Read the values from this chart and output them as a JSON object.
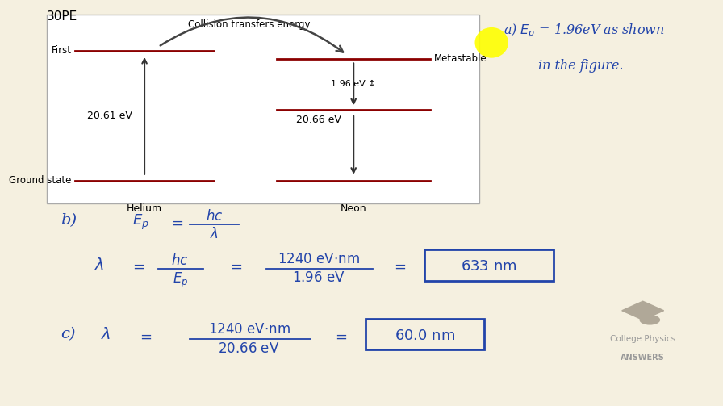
{
  "background_color": "#f5f0e0",
  "title_text": "30PE",
  "line_color": "#8B0000",
  "arrow_color": "#333333",
  "text_color_diagram": "#000000",
  "handwriting_color": "#2244aa",
  "collision_label": "Collision transfers energy",
  "he_energy_label": "20.61 eV",
  "ne_energy_label": "20.66 eV",
  "ne_diff_label": "1.96 eV ↕",
  "helium_label": "Helium",
  "neon_label": "Neon",
  "first_label": "First",
  "metastable_label": "Metastable",
  "ground_state_label": "Ground state",
  "logo_text1": "College Physics",
  "logo_text2": "ANSWERS"
}
